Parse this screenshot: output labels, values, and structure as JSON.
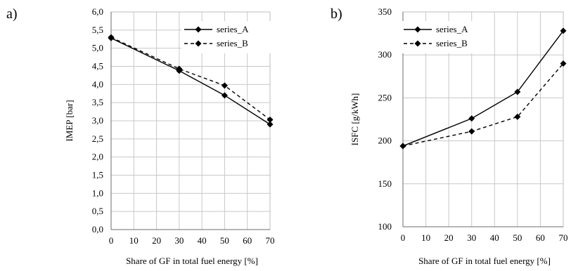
{
  "chart_data": [
    {
      "type": "line",
      "panel_label": "a)",
      "xlabel": "Share of GF in total fuel energy [%]",
      "ylabel": "IMEP [bar]",
      "xlim": [
        0,
        70
      ],
      "ylim": [
        0,
        6
      ],
      "x_ticks": [
        "0",
        "10",
        "20",
        "30",
        "40",
        "50",
        "60",
        "70"
      ],
      "y_ticks": [
        "0,0",
        "0,5",
        "1,0",
        "1,5",
        "2,0",
        "2,5",
        "3,0",
        "3,5",
        "4,0",
        "4,5",
        "5,0",
        "5,5",
        "6,0"
      ],
      "grid": true,
      "legend_position": "top-right",
      "x": [
        0,
        30,
        50,
        70
      ],
      "series": [
        {
          "name": "series_A",
          "style": "solid",
          "values": [
            5.28,
            4.38,
            3.7,
            2.9
          ]
        },
        {
          "name": "series_B",
          "style": "dashed",
          "values": [
            5.3,
            4.43,
            3.97,
            3.03
          ]
        }
      ]
    },
    {
      "type": "line",
      "panel_label": "b)",
      "xlabel": "Share of GF in total fuel energy [%]",
      "ylabel": "ISFC [g/kWh]",
      "xlim": [
        0,
        70
      ],
      "ylim": [
        100,
        350
      ],
      "x_ticks": [
        "0",
        "10",
        "20",
        "30",
        "40",
        "50",
        "60",
        "70"
      ],
      "y_ticks": [
        "100",
        "150",
        "200",
        "250",
        "300",
        "350"
      ],
      "grid": true,
      "legend_position": "top-left",
      "x": [
        0,
        30,
        50,
        70
      ],
      "series": [
        {
          "name": "series_A",
          "style": "solid",
          "values": [
            194,
            226,
            257,
            328
          ]
        },
        {
          "name": "series_B",
          "style": "dashed",
          "values": [
            194,
            211,
            228,
            290
          ]
        }
      ]
    }
  ]
}
